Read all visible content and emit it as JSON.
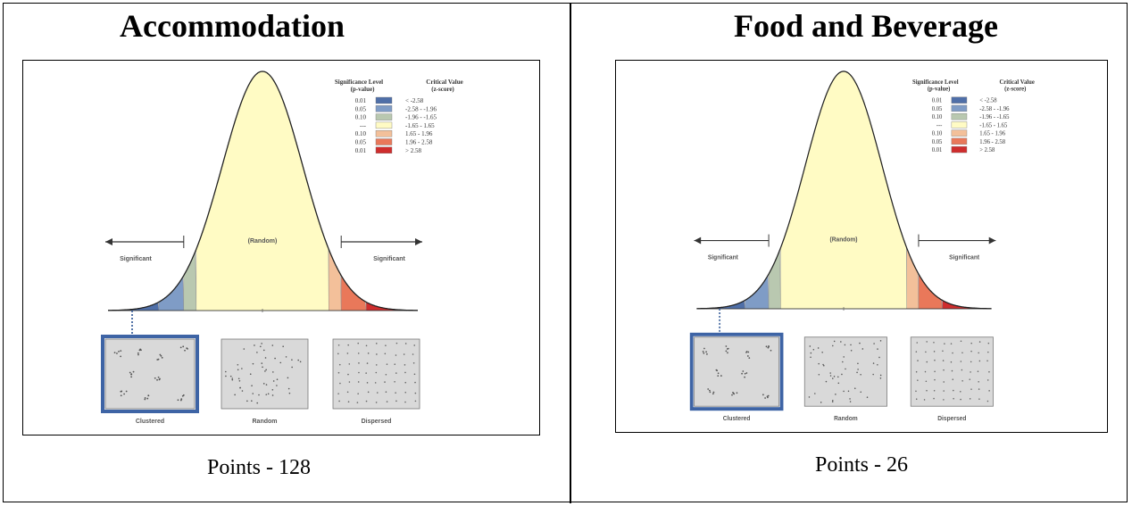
{
  "panels": [
    {
      "title": "Accommodation",
      "caption": "Points - 128",
      "diagram": {
        "legend": {
          "header_significance": [
            "Significance Level",
            "(p-value)"
          ],
          "header_critical": [
            "Critical Value",
            "(z-score)"
          ],
          "rows": [
            {
              "p": "0.01",
              "color": "#4f6fa8",
              "z": "< -2.58"
            },
            {
              "p": "0.05",
              "color": "#7f9cc6",
              "z": "-2.58 - -1.96"
            },
            {
              "p": "0.10",
              "color": "#b9c8b0",
              "z": "-1.96 - -1.65"
            },
            {
              "p": "---",
              "color": "#fffbc4",
              "z": "-1.65 - 1.65"
            },
            {
              "p": "0.10",
              "color": "#f3c09a",
              "z": "1.65 - 1.96"
            },
            {
              "p": "0.05",
              "color": "#e9785a",
              "z": "1.96 - 2.58"
            },
            {
              "p": "0.01",
              "color": "#cf2d2d",
              "z": "> 2.58"
            }
          ]
        },
        "random_label": "(Random)",
        "significant_left": "Significant",
        "significant_right": "Significant",
        "patterns": [
          "Clustered",
          "Random",
          "Dispersed"
        ]
      }
    },
    {
      "title": "Food and Beverage",
      "caption": "Points - 26",
      "diagram": {
        "legend": {
          "header_significance": [
            "Significance Level",
            "(p-value)"
          ],
          "header_critical": [
            "Critical Value",
            "(z-score)"
          ],
          "rows": [
            {
              "p": "0.01",
              "color": "#4f6fa8",
              "z": "< -2.58"
            },
            {
              "p": "0.05",
              "color": "#7f9cc6",
              "z": "-2.58 - -1.96"
            },
            {
              "p": "0.10",
              "color": "#b9c8b0",
              "z": "-1.96 - -1.65"
            },
            {
              "p": "---",
              "color": "#fffbc4",
              "z": "-1.65 - 1.65"
            },
            {
              "p": "0.10",
              "color": "#f3c09a",
              "z": "1.65 - 1.96"
            },
            {
              "p": "0.05",
              "color": "#e9785a",
              "z": "1.96 - 2.58"
            },
            {
              "p": "0.01",
              "color": "#cf2d2d",
              "z": "> 2.58"
            }
          ]
        },
        "random_label": "(Random)",
        "significant_left": "Significant",
        "significant_right": "Significant",
        "patterns": [
          "Clustered",
          "Random",
          "Dispersed"
        ]
      }
    }
  ]
}
